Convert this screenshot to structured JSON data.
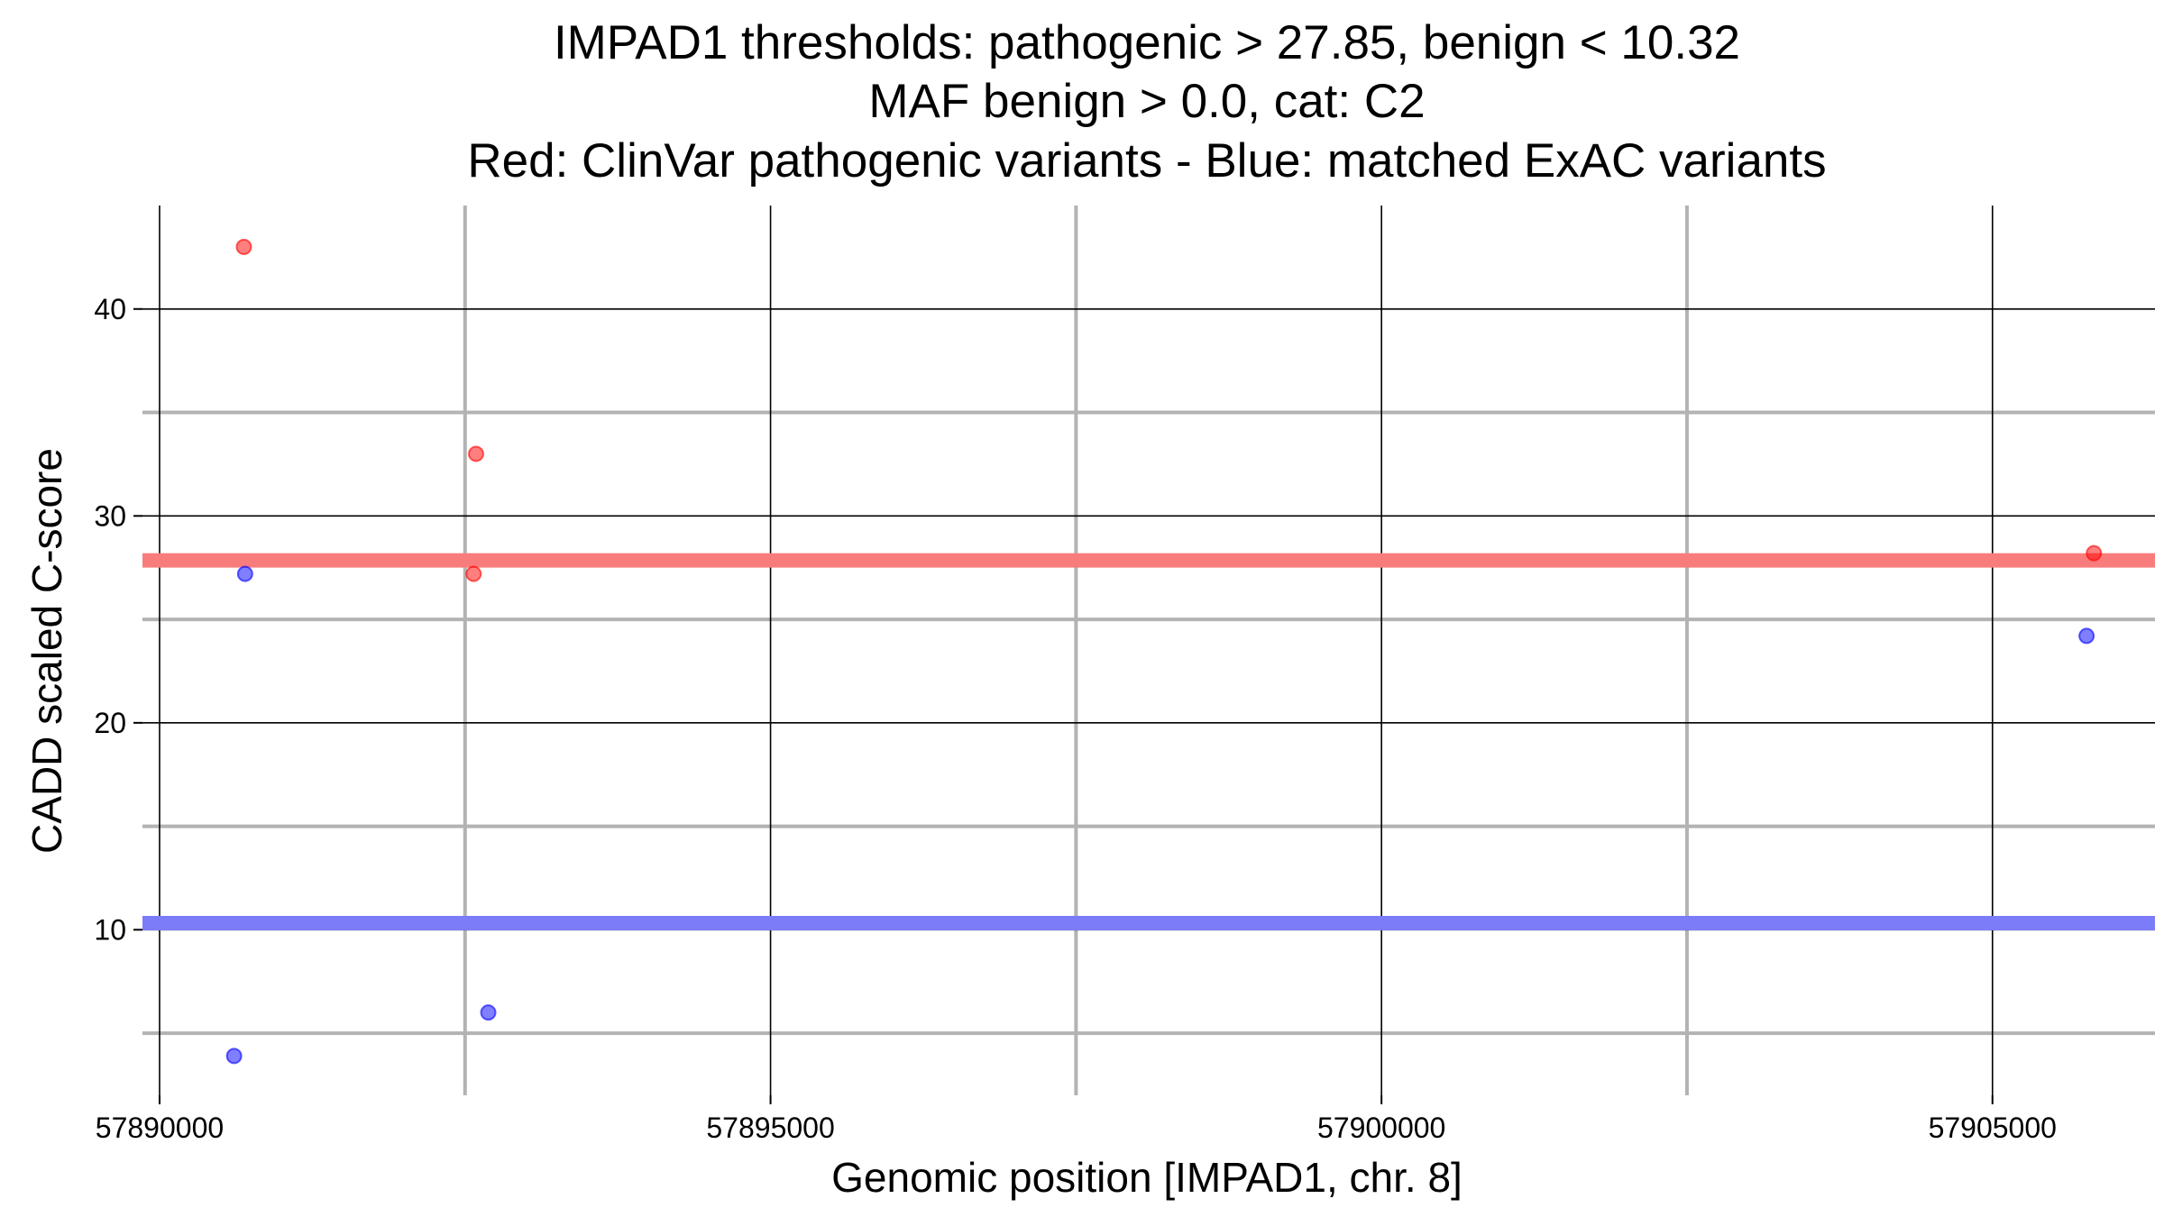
{
  "chart_data": {
    "type": "scatter",
    "title_lines": [
      "IMPAD1 thresholds: pathogenic > 27.85, benign < 10.32",
      "MAF benign > 0.0, cat: C2",
      "Red: ClinVar pathogenic variants - Blue: matched ExAC variants"
    ],
    "xlabel": "Genomic position [IMPAD1, chr. 8]",
    "ylabel": "CADD scaled C-score",
    "xlim": [
      57889860,
      57906330
    ],
    "ylim": [
      2,
      45
    ],
    "x_major_ticks": [
      57890000,
      57895000,
      57900000,
      57905000
    ],
    "x_tick_labels": [
      "57890000",
      "57895000",
      "57900000",
      "57905000"
    ],
    "x_minor_ticks": [
      57892500,
      57897500,
      57902500
    ],
    "y_major_ticks": [
      10,
      20,
      30,
      40
    ],
    "y_tick_labels": [
      "10",
      "20",
      "30",
      "40"
    ],
    "y_minor_ticks": [
      5,
      15,
      25,
      35
    ],
    "thresholds": [
      {
        "name": "pathogenic",
        "value": 27.85,
        "color": "#f87c7c"
      },
      {
        "name": "benign",
        "value": 10.32,
        "color": "#7c7cf8"
      }
    ],
    "series": [
      {
        "name": "ClinVar pathogenic variants",
        "color": "#ff0000",
        "points": [
          {
            "x": 57890690,
            "y": 43.0
          },
          {
            "x": 57892590,
            "y": 33.0
          },
          {
            "x": 57892570,
            "y": 27.2
          },
          {
            "x": 57905830,
            "y": 28.2
          }
        ]
      },
      {
        "name": "matched ExAC variants",
        "color": "#0000ff",
        "points": [
          {
            "x": 57890700,
            "y": 27.2
          },
          {
            "x": 57890610,
            "y": 3.9
          },
          {
            "x": 57892690,
            "y": 6.0
          },
          {
            "x": 57905770,
            "y": 24.2
          }
        ]
      }
    ]
  }
}
